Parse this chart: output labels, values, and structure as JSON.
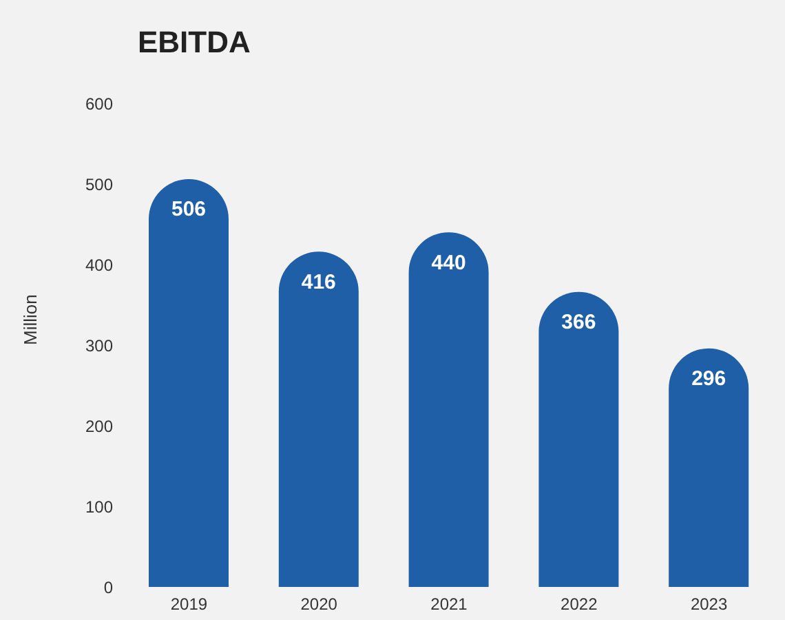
{
  "chart_data": {
    "type": "bar",
    "title": "EBITDA",
    "ylabel": "Million",
    "categories": [
      "2019",
      "2020",
      "2021",
      "2022",
      "2023"
    ],
    "values": [
      506,
      416,
      440,
      366,
      296
    ],
    "color": "#1f5fa8",
    "data_labels": true,
    "ylim": [
      0,
      600
    ],
    "yticks": [
      0,
      100,
      200,
      300,
      400,
      500,
      600
    ],
    "grid": false,
    "legend": false
  }
}
